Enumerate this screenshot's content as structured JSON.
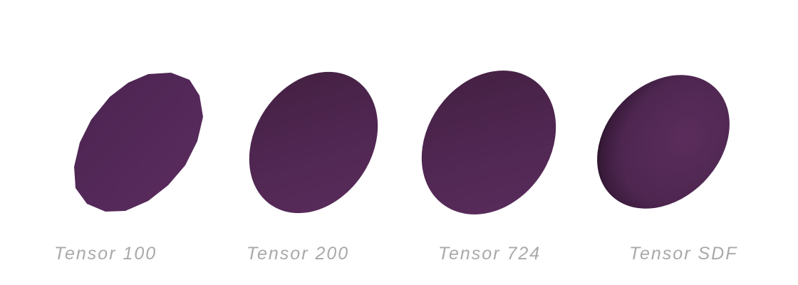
{
  "shapes": [
    {
      "label": "Tensor 100"
    },
    {
      "label": "Tensor 200"
    },
    {
      "label": "Tensor 724"
    },
    {
      "label": "Tensor SDF"
    }
  ],
  "colors": {
    "background": "#ffffff",
    "shape_dark": "#3f1f45",
    "shape_mid": "#4e2550",
    "shape_light": "#5c2e5d",
    "label": "#a9a9a9"
  }
}
